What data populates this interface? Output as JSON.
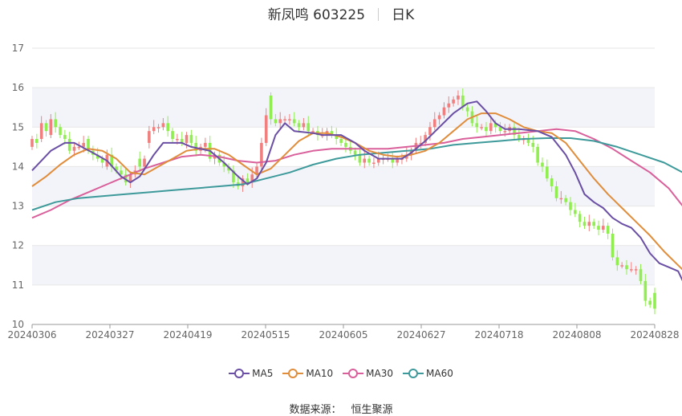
{
  "header": {
    "name_code": "新凤鸣 603225",
    "period": "日K"
  },
  "footer": {
    "source_label": "数据来源：",
    "source_name": "恒生聚源"
  },
  "colors": {
    "up": "#f08080",
    "down": "#90ee50",
    "MA5": "#6a4fa5",
    "MA10": "#e08d3c",
    "MA30": "#d9609a",
    "MA60": "#3e9a9a",
    "band": "#f3f4fa",
    "grid": "#e6e6e6",
    "axis": "#999999"
  },
  "chart_data": {
    "type": "candlestick",
    "title": "新凤鸣 603225",
    "subtitle": "日K",
    "ylim": [
      10,
      17
    ],
    "yticks": [
      10,
      11,
      12,
      13,
      14,
      15,
      16,
      17
    ],
    "xtick_labels": [
      "20240306",
      "20240327",
      "20240419",
      "20240515",
      "20240605",
      "20240627",
      "20240718",
      "20240808",
      "20240828"
    ],
    "legend": [
      "MA5",
      "MA10",
      "MA30",
      "MA60"
    ],
    "legend_position": "bottom",
    "close": [
      14.7,
      14.6,
      15.1,
      14.9,
      15.2,
      15.0,
      14.8,
      14.7,
      14.4,
      14.5,
      14.5,
      14.6,
      14.4,
      14.3,
      14.2,
      14.1,
      14.3,
      14.0,
      13.9,
      13.8,
      13.6,
      13.8,
      13.9,
      14.0,
      14.2,
      14.9,
      15.0,
      15.0,
      15.1,
      14.9,
      14.7,
      14.7,
      14.6,
      14.8,
      14.6,
      14.4,
      14.5,
      14.6,
      14.2,
      14.3,
      14.1,
      14.0,
      13.9,
      13.6,
      13.5,
      13.7,
      13.6,
      13.8,
      14.0,
      14.6,
      15.3,
      15.2,
      15.1,
      15.2,
      15.2,
      15.2,
      15.1,
      15.0,
      15.1,
      14.9,
      14.9,
      14.8,
      14.8,
      14.9,
      14.8,
      14.7,
      14.6,
      14.5,
      14.4,
      14.3,
      14.1,
      14.2,
      14.1,
      14.1,
      14.2,
      14.2,
      14.2,
      14.1,
      14.2,
      14.2,
      14.3,
      14.4,
      14.6,
      14.6,
      14.8,
      15.0,
      15.2,
      15.3,
      15.5,
      15.6,
      15.7,
      15.8,
      15.5,
      15.4,
      15.1,
      15.0,
      15.0,
      14.9,
      15.1,
      15.0,
      14.9,
      14.9,
      15.0,
      14.8,
      14.7,
      14.7,
      14.6,
      14.5,
      14.1,
      14.0,
      13.7,
      13.5,
      13.2,
      13.2,
      13.1,
      12.9,
      12.8,
      12.6,
      12.5,
      12.6,
      12.5,
      12.4,
      12.5,
      12.3,
      11.7,
      11.5,
      11.5,
      11.4,
      11.4,
      11.4,
      11.1,
      10.6,
      10.5,
      10.4
    ],
    "open": [
      14.5,
      14.7,
      14.7,
      15.1,
      14.8,
      15.2,
      15.0,
      14.8,
      14.7,
      14.4,
      14.5,
      14.5,
      14.7,
      14.4,
      14.3,
      14.2,
      14.0,
      14.3,
      14.0,
      13.9,
      13.8,
      13.6,
      13.8,
      14.2,
      14.0,
      14.6,
      14.9,
      15.0,
      15.0,
      15.1,
      14.9,
      14.7,
      14.7,
      14.6,
      14.8,
      14.6,
      14.4,
      14.5,
      14.6,
      14.2,
      14.3,
      14.1,
      14.0,
      13.9,
      13.6,
      13.5,
      13.7,
      13.6,
      13.8,
      14.0,
      14.6,
      15.8,
      15.2,
      15.1,
      15.2,
      15.2,
      15.2,
      15.1,
      15.0,
      15.1,
      14.9,
      14.9,
      14.8,
      14.8,
      14.9,
      14.8,
      14.7,
      14.6,
      14.5,
      14.4,
      14.3,
      14.1,
      14.2,
      14.1,
      14.1,
      14.2,
      14.2,
      14.2,
      14.1,
      14.2,
      14.2,
      14.3,
      14.4,
      14.6,
      14.6,
      14.8,
      15.0,
      15.2,
      15.3,
      15.5,
      15.6,
      15.7,
      15.8,
      15.5,
      15.4,
      15.1,
      15.0,
      15.0,
      14.9,
      15.1,
      15.0,
      14.9,
      14.9,
      15.0,
      14.8,
      14.7,
      14.7,
      14.6,
      14.5,
      14.1,
      14.0,
      13.7,
      13.5,
      13.2,
      13.2,
      13.1,
      12.9,
      12.8,
      12.6,
      12.5,
      12.6,
      12.5,
      12.4,
      12.5,
      12.3,
      11.7,
      11.5,
      11.5,
      11.4,
      11.4,
      11.4,
      11.1,
      10.6,
      10.8
    ]
  },
  "ma": {
    "MA5": [
      [
        0,
        13.9
      ],
      [
        4,
        14.4
      ],
      [
        7,
        14.6
      ],
      [
        9,
        14.6
      ],
      [
        13,
        14.35
      ],
      [
        16,
        14.15
      ],
      [
        19,
        13.75
      ],
      [
        21,
        13.6
      ],
      [
        23,
        13.75
      ],
      [
        26,
        14.3
      ],
      [
        28,
        14.6
      ],
      [
        32,
        14.6
      ],
      [
        34,
        14.5
      ],
      [
        38,
        14.4
      ],
      [
        41,
        14.1
      ],
      [
        44,
        13.75
      ],
      [
        46,
        13.55
      ],
      [
        48,
        13.7
      ],
      [
        50,
        14.1
      ],
      [
        52,
        14.8
      ],
      [
        54,
        15.1
      ],
      [
        56,
        14.9
      ],
      [
        60,
        14.85
      ],
      [
        62,
        14.8
      ],
      [
        66,
        14.8
      ],
      [
        69,
        14.6
      ],
      [
        71,
        14.4
      ],
      [
        74,
        14.2
      ],
      [
        77,
        14.2
      ],
      [
        79,
        14.2
      ],
      [
        81,
        14.35
      ],
      [
        84,
        14.65
      ],
      [
        87,
        15.0
      ],
      [
        90,
        15.35
      ],
      [
        93,
        15.6
      ],
      [
        95,
        15.65
      ],
      [
        97,
        15.4
      ],
      [
        99,
        15.1
      ],
      [
        101,
        14.95
      ],
      [
        104,
        14.95
      ],
      [
        108,
        14.9
      ],
      [
        111,
        14.75
      ],
      [
        114,
        14.3
      ],
      [
        116,
        13.85
      ],
      [
        118,
        13.3
      ],
      [
        120,
        13.1
      ],
      [
        122,
        12.95
      ],
      [
        124,
        12.7
      ],
      [
        126,
        12.55
      ],
      [
        128,
        12.45
      ],
      [
        130,
        12.2
      ],
      [
        132,
        11.8
      ],
      [
        134,
        11.55
      ],
      [
        136,
        11.45
      ],
      [
        138,
        11.35
      ],
      [
        139,
        11.1
      ],
      [
        141,
        10.85
      ]
    ],
    "MA10": [
      [
        0,
        13.5
      ],
      [
        3,
        13.75
      ],
      [
        6,
        14.05
      ],
      [
        9,
        14.3
      ],
      [
        12,
        14.45
      ],
      [
        15,
        14.4
      ],
      [
        18,
        14.2
      ],
      [
        21,
        13.85
      ],
      [
        24,
        13.8
      ],
      [
        27,
        14.0
      ],
      [
        30,
        14.2
      ],
      [
        33,
        14.4
      ],
      [
        36,
        14.45
      ],
      [
        39,
        14.45
      ],
      [
        42,
        14.3
      ],
      [
        45,
        14.05
      ],
      [
        48,
        13.8
      ],
      [
        51,
        13.95
      ],
      [
        54,
        14.3
      ],
      [
        57,
        14.65
      ],
      [
        60,
        14.85
      ],
      [
        63,
        14.85
      ],
      [
        66,
        14.75
      ],
      [
        69,
        14.6
      ],
      [
        72,
        14.4
      ],
      [
        75,
        14.3
      ],
      [
        78,
        14.25
      ],
      [
        81,
        14.3
      ],
      [
        84,
        14.4
      ],
      [
        87,
        14.6
      ],
      [
        90,
        14.9
      ],
      [
        93,
        15.2
      ],
      [
        96,
        15.35
      ],
      [
        99,
        15.35
      ],
      [
        102,
        15.2
      ],
      [
        105,
        15.0
      ],
      [
        108,
        14.9
      ],
      [
        111,
        14.85
      ],
      [
        114,
        14.6
      ],
      [
        117,
        14.15
      ],
      [
        120,
        13.7
      ],
      [
        123,
        13.3
      ],
      [
        126,
        12.95
      ],
      [
        129,
        12.6
      ],
      [
        132,
        12.25
      ],
      [
        135,
        11.85
      ],
      [
        138,
        11.5
      ],
      [
        141,
        11.15
      ]
    ],
    "MA30": [
      [
        0,
        12.7
      ],
      [
        4,
        12.9
      ],
      [
        8,
        13.15
      ],
      [
        12,
        13.35
      ],
      [
        16,
        13.55
      ],
      [
        20,
        13.75
      ],
      [
        24,
        13.95
      ],
      [
        28,
        14.1
      ],
      [
        32,
        14.25
      ],
      [
        36,
        14.3
      ],
      [
        40,
        14.25
      ],
      [
        44,
        14.15
      ],
      [
        48,
        14.1
      ],
      [
        52,
        14.15
      ],
      [
        56,
        14.3
      ],
      [
        60,
        14.4
      ],
      [
        64,
        14.45
      ],
      [
        68,
        14.45
      ],
      [
        72,
        14.45
      ],
      [
        76,
        14.45
      ],
      [
        80,
        14.5
      ],
      [
        84,
        14.55
      ],
      [
        88,
        14.6
      ],
      [
        92,
        14.7
      ],
      [
        96,
        14.75
      ],
      [
        100,
        14.8
      ],
      [
        104,
        14.85
      ],
      [
        108,
        14.9
      ],
      [
        112,
        14.95
      ],
      [
        116,
        14.9
      ],
      [
        120,
        14.7
      ],
      [
        124,
        14.45
      ],
      [
        128,
        14.15
      ],
      [
        132,
        13.85
      ],
      [
        136,
        13.45
      ],
      [
        139,
        13.0
      ],
      [
        141,
        12.45
      ]
    ],
    "MA60": [
      [
        0,
        12.9
      ],
      [
        5,
        13.1
      ],
      [
        10,
        13.2
      ],
      [
        15,
        13.25
      ],
      [
        20,
        13.3
      ],
      [
        25,
        13.35
      ],
      [
        30,
        13.4
      ],
      [
        35,
        13.45
      ],
      [
        40,
        13.5
      ],
      [
        45,
        13.55
      ],
      [
        50,
        13.7
      ],
      [
        55,
        13.85
      ],
      [
        60,
        14.05
      ],
      [
        65,
        14.2
      ],
      [
        70,
        14.3
      ],
      [
        75,
        14.35
      ],
      [
        80,
        14.4
      ],
      [
        85,
        14.45
      ],
      [
        90,
        14.55
      ],
      [
        95,
        14.6
      ],
      [
        100,
        14.65
      ],
      [
        105,
        14.7
      ],
      [
        110,
        14.72
      ],
      [
        115,
        14.72
      ],
      [
        120,
        14.65
      ],
      [
        125,
        14.5
      ],
      [
        130,
        14.3
      ],
      [
        135,
        14.1
      ],
      [
        139,
        13.85
      ],
      [
        141,
        13.7
      ]
    ]
  }
}
